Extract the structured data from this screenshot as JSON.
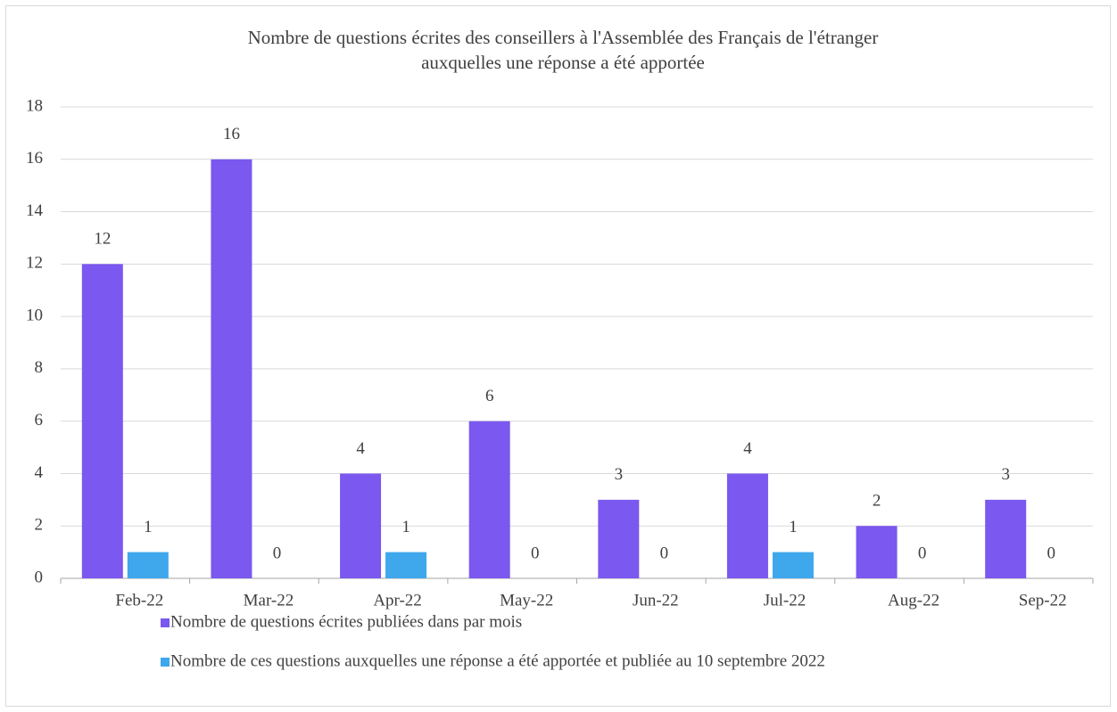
{
  "chart_data": {
    "type": "bar",
    "title": [
      "Nombre de questions écrites des conseillers à l'Assemblée des Français de l'étranger",
      "auxquelles une réponse a été apportée"
    ],
    "categories": [
      "Feb-22",
      "Mar-22",
      "Apr-22",
      "May-22",
      "Jun-22",
      "Jul-22",
      "Aug-22",
      "Sep-22"
    ],
    "series": [
      {
        "name": "Nombre de questions écrites publiées dans par mois",
        "color": "#7b58ef",
        "values": [
          12,
          16,
          4,
          6,
          3,
          4,
          2,
          3
        ]
      },
      {
        "name": "Nombre de ces questions auxquelles une réponse a été apportée et publiée au 10 septembre 2022",
        "color": "#3fa7ec",
        "values": [
          1,
          0,
          1,
          0,
          0,
          1,
          0,
          0
        ]
      }
    ],
    "ylim": [
      0,
      18
    ],
    "yticks": [
      0,
      2,
      4,
      6,
      8,
      10,
      12,
      14,
      16,
      18
    ],
    "grid": true,
    "legend": "bottom"
  }
}
